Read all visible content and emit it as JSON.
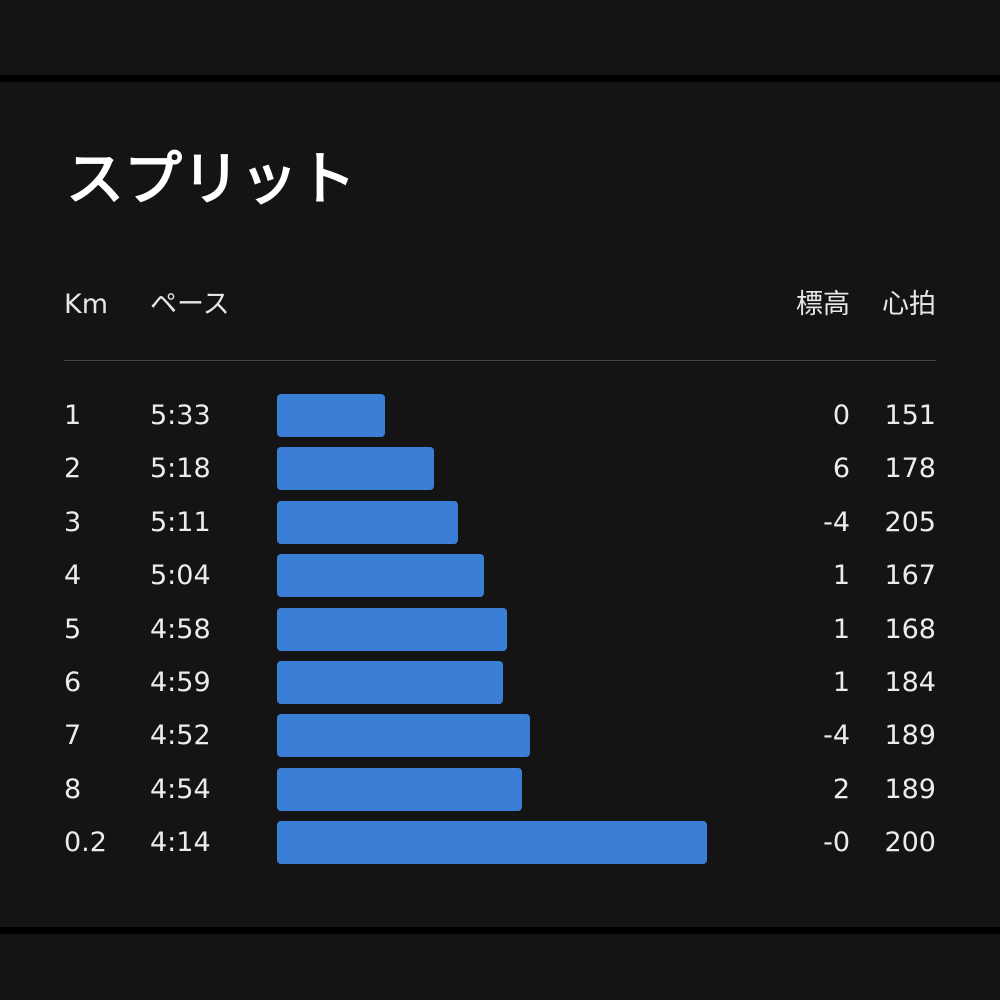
{
  "title": "スプリット",
  "headers": {
    "km": "Km",
    "pace": "ペース",
    "elevation": "標高",
    "heart_rate": "心拍"
  },
  "colors": {
    "bar": "#3a7fd5",
    "background": "#141414",
    "text": "#ececec"
  },
  "splits": [
    {
      "km": "1",
      "pace": "5:33",
      "elevation": "0",
      "heart_rate": "151"
    },
    {
      "km": "2",
      "pace": "5:18",
      "elevation": "6",
      "heart_rate": "178"
    },
    {
      "km": "3",
      "pace": "5:11",
      "elevation": "-4",
      "heart_rate": "205"
    },
    {
      "km": "4",
      "pace": "5:04",
      "elevation": "1",
      "heart_rate": "167"
    },
    {
      "km": "5",
      "pace": "4:58",
      "elevation": "1",
      "heart_rate": "168"
    },
    {
      "km": "6",
      "pace": "4:59",
      "elevation": "1",
      "heart_rate": "184"
    },
    {
      "km": "7",
      "pace": "4:52",
      "elevation": "-4",
      "heart_rate": "189"
    },
    {
      "km": "8",
      "pace": "4:54",
      "elevation": "2",
      "heart_rate": "189"
    },
    {
      "km": "0.2",
      "pace": "4:14",
      "elevation": "-0",
      "heart_rate": "200"
    }
  ]
}
